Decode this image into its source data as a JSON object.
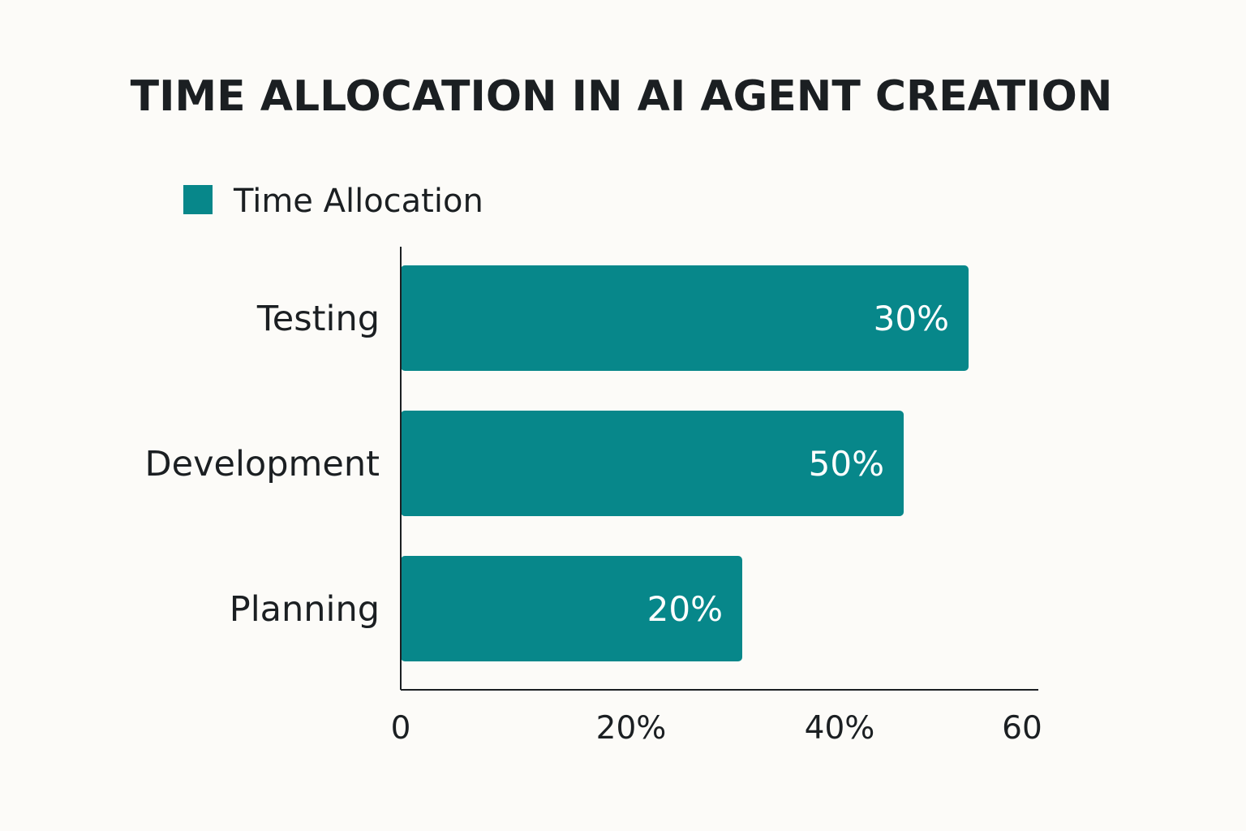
{
  "chart_data": {
    "type": "bar",
    "orientation": "horizontal",
    "title": "TIME ALLOCATION IN AI AGENT CREATION",
    "legend": {
      "position": "top-left",
      "entries": [
        "Time Allocation"
      ]
    },
    "categories": [
      "Testing",
      "Development",
      "Planning"
    ],
    "series": [
      {
        "name": "Time Allocation",
        "color": "#07878a",
        "values": [
          30,
          50,
          20
        ],
        "data_labels": [
          "30%",
          "50%",
          "20%"
        ]
      }
    ],
    "xaxis": {
      "ticks": [
        {
          "value": 0,
          "label": "0"
        },
        {
          "value": 20,
          "label": "20%"
        },
        {
          "value": 40,
          "label": "40%"
        },
        {
          "value": 60,
          "label": "60"
        }
      ],
      "xlim": [
        0,
        60
      ]
    },
    "grid": false
  }
}
